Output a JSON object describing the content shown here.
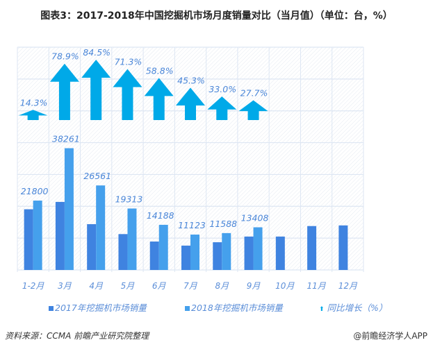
{
  "title": "图表3：2017-2018年中国挖掘机市场月度销量对比（当月值）（单位：台，%）",
  "chart_data": {
    "type": "bar",
    "categories": [
      "1-2月",
      "3月",
      "4月",
      "5月",
      "6月",
      "7月",
      "8月",
      "9月",
      "10月",
      "11月",
      "12月"
    ],
    "series": [
      {
        "name": "2017年挖掘机市场销量",
        "color": "#3f83e0",
        "values": [
          19073,
          21387,
          14396,
          11274,
          8935,
          7655,
          8713,
          10500,
          10500,
          13800,
          14000
        ]
      },
      {
        "name": "2018年挖掘机市场销量",
        "color": "#45a0ec",
        "values": [
          21800,
          38261,
          26561,
          19313,
          14188,
          11123,
          11588,
          13408,
          null,
          null,
          null
        ]
      },
      {
        "name": "同比增长（%）",
        "type": "arrow",
        "color": "#00a9e8",
        "values": [
          14.3,
          78.9,
          84.5,
          71.3,
          58.8,
          45.3,
          33.0,
          27.7,
          null,
          null,
          null
        ]
      }
    ],
    "data_labels_2018": [
      "21800",
      "38261",
      "26561",
      "19313",
      "14188",
      "11123",
      "11588",
      "13408"
    ],
    "data_labels_growth": [
      "14.3%",
      "78.9%",
      "84.5%",
      "71.3%",
      "58.8%",
      "45.3%",
      "33.0%",
      "27.7%"
    ],
    "ylim": [
      0,
      70000
    ],
    "grid": true,
    "legend_position": "bottom"
  },
  "source": "资料来源：CCMA 前瞻产业研究院整理",
  "brand": "@前瞻经济学人APP"
}
